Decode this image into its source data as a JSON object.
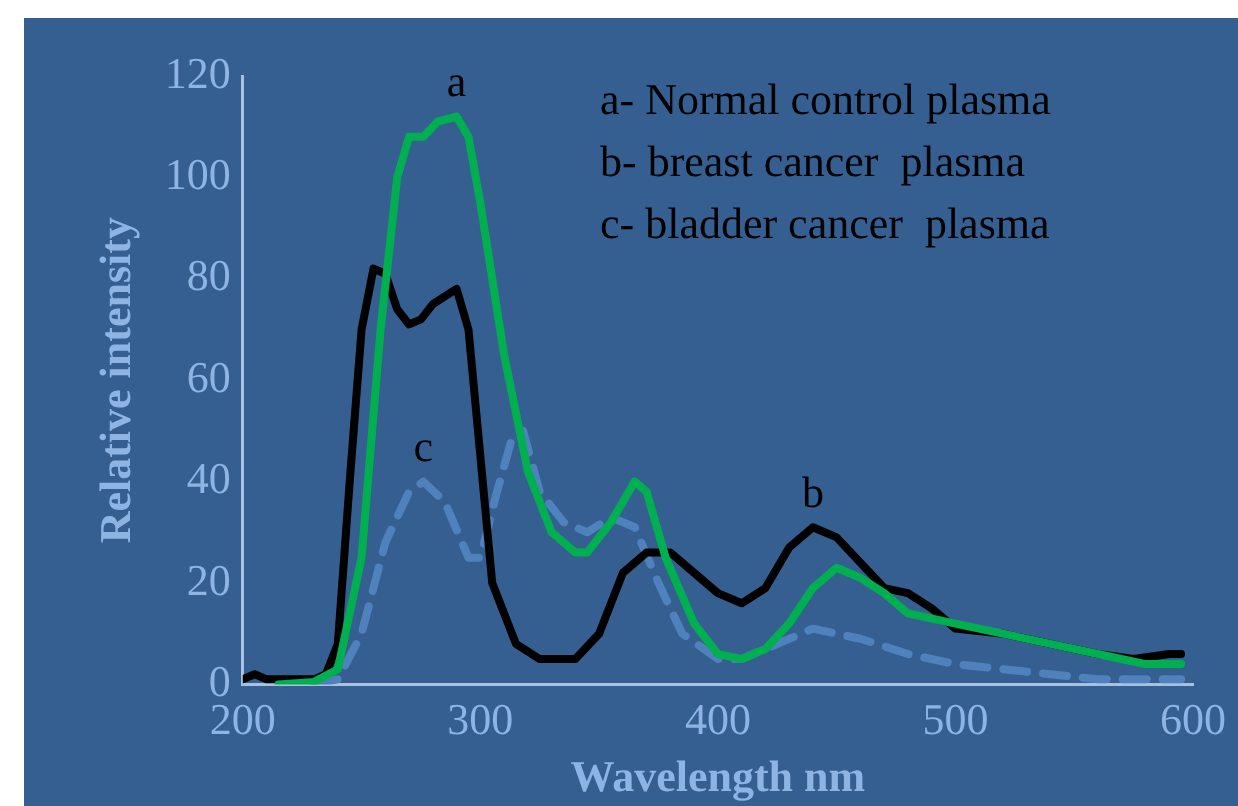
{
  "chart_data": {
    "type": "line",
    "xlabel": "Wavelength nm",
    "ylabel": "Relative intensity",
    "xlim": [
      200,
      600
    ],
    "xticks": [
      200,
      300,
      400,
      500,
      600
    ],
    "ylim": [
      0,
      120
    ],
    "yticks": [
      0,
      20,
      40,
      60,
      80,
      100,
      120
    ],
    "grid": false,
    "legend": false,
    "marker": "none",
    "annotations": [
      {
        "text": "a",
        "x": 290,
        "y": 112
      },
      {
        "text": "b",
        "x": 440,
        "y": 31
      },
      {
        "text": "c",
        "x": 276,
        "y": 40
      },
      "a- Normal control plasma",
      "b- breast cancer  plasma",
      "c- bladder cancer  plasma"
    ],
    "series": [
      {
        "color": "#00b050",
        "line_style": "solid",
        "x": [
          215,
          230,
          240,
          250,
          258,
          265,
          270,
          276,
          282,
          290,
          295,
          300,
          310,
          320,
          330,
          340,
          345,
          355,
          365,
          370,
          378,
          390,
          400,
          410,
          420,
          430,
          440,
          450,
          460,
          470,
          480,
          500,
          520,
          540,
          560,
          580,
          595
        ],
        "values": [
          0,
          0.5,
          3,
          25,
          70,
          100,
          108,
          108,
          111,
          112,
          108,
          95,
          65,
          42,
          30,
          26,
          26,
          32,
          40,
          38,
          25,
          12,
          6,
          5,
          7,
          12,
          19,
          23,
          21,
          18,
          14,
          12,
          10,
          8,
          6,
          4,
          4
        ]
      },
      {
        "color": "#000000",
        "line_style": "solid",
        "x": [
          200,
          205,
          210,
          220,
          230,
          235,
          240,
          245,
          250,
          255,
          260,
          265,
          270,
          275,
          280,
          290,
          295,
          300,
          305,
          315,
          325,
          340,
          350,
          360,
          370,
          380,
          390,
          400,
          410,
          420,
          430,
          440,
          450,
          460,
          470,
          480,
          490,
          500,
          520,
          540,
          560,
          575,
          590,
          595
        ],
        "values": [
          1,
          2,
          1,
          1,
          1,
          2,
          8,
          40,
          70,
          82,
          81,
          74,
          71,
          72,
          75,
          78,
          70,
          45,
          20,
          8,
          5,
          5,
          10,
          22,
          26,
          26,
          22,
          18,
          16,
          19,
          27,
          31,
          29,
          24,
          19,
          18,
          15,
          11,
          10,
          8,
          6,
          5,
          6,
          6
        ]
      },
      {
        "color": "#4f81bd",
        "line_style": "dashed",
        "x": [
          230,
          240,
          250,
          260,
          270,
          276,
          285,
          295,
          300,
          307,
          313,
          318,
          325,
          335,
          345,
          355,
          365,
          375,
          385,
          400,
          410,
          420,
          440,
          460,
          480,
          500,
          520,
          540,
          560,
          580,
          595
        ],
        "values": [
          0,
          1,
          10,
          28,
          38,
          40,
          36,
          25,
          25,
          38,
          48,
          50,
          38,
          32,
          30,
          33,
          31,
          20,
          10,
          5,
          5,
          7,
          11,
          9,
          6,
          4,
          3,
          2,
          1,
          1,
          1
        ]
      }
    ]
  }
}
